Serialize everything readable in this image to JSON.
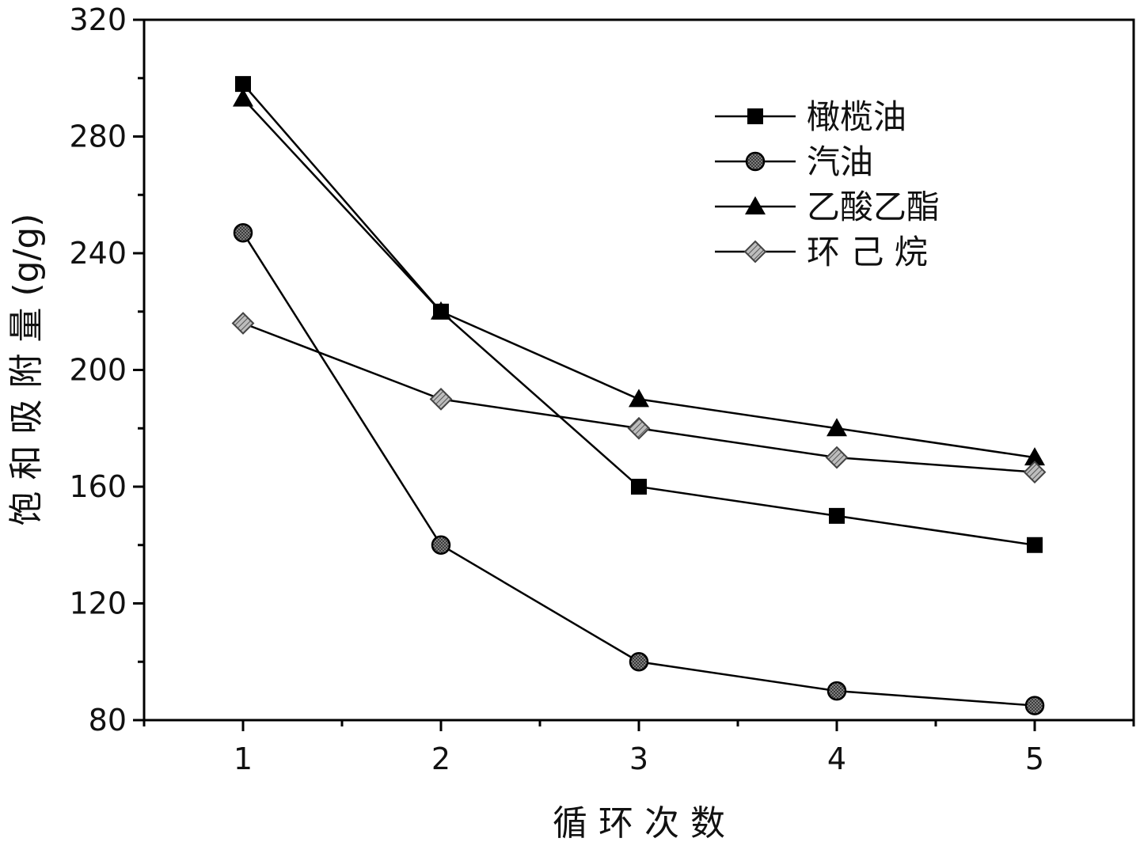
{
  "chart_data": {
    "type": "line",
    "title": "",
    "xlabel": "循 环 次 数",
    "ylabel": "饱 和 吸 附 量 (g/g)",
    "xlim": [
      0.5,
      5.5
    ],
    "ylim": [
      80,
      320
    ],
    "x": [
      1,
      2,
      3,
      4,
      5
    ],
    "xticks": [
      "1",
      "2",
      "3",
      "4",
      "5"
    ],
    "yticks": [
      "80",
      "120",
      "160",
      "200",
      "240",
      "280",
      "320"
    ],
    "grid": false,
    "legend_position": "top-right",
    "series": [
      {
        "name": "橄榄油",
        "marker": "square",
        "values": [
          298,
          220,
          160,
          150,
          140
        ]
      },
      {
        "name": "汽油",
        "marker": "circle",
        "values": [
          247,
          140,
          100,
          90,
          85
        ]
      },
      {
        "name": "乙酸乙酯",
        "marker": "triangle",
        "values": [
          293,
          220,
          190,
          180,
          170
        ]
      },
      {
        "name": "环 己 烷",
        "marker": "diamond",
        "values": [
          216,
          190,
          180,
          170,
          165
        ]
      }
    ]
  }
}
